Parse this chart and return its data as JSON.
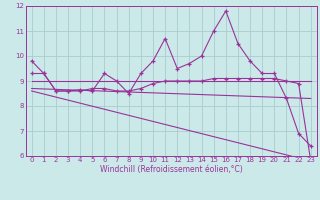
{
  "background_color": "#cce9e9",
  "grid_color": "#aacccc",
  "line_color": "#993399",
  "xlabel": "Windchill (Refroidissement éolien,°C)",
  "xlim": [
    -0.5,
    23.5
  ],
  "ylim": [
    6,
    12
  ],
  "yticks": [
    6,
    7,
    8,
    9,
    10,
    11,
    12
  ],
  "xticks": [
    0,
    1,
    2,
    3,
    4,
    5,
    6,
    7,
    8,
    9,
    10,
    11,
    12,
    13,
    14,
    15,
    16,
    17,
    18,
    19,
    20,
    21,
    22,
    23
  ],
  "series1": {
    "x": [
      0,
      1,
      2,
      3,
      4,
      5,
      6,
      7,
      8,
      9,
      10,
      11,
      12,
      13,
      14,
      15,
      16,
      17,
      18,
      19,
      20,
      21,
      22,
      23
    ],
    "y": [
      9.8,
      9.3,
      8.6,
      8.6,
      8.65,
      8.6,
      9.3,
      9.0,
      8.5,
      9.3,
      9.8,
      10.7,
      9.5,
      9.7,
      10.0,
      11.0,
      11.8,
      10.5,
      9.8,
      9.3,
      9.3,
      8.3,
      6.9,
      6.4
    ]
  },
  "series2": {
    "x": [
      0,
      1,
      2,
      3,
      4,
      5,
      6,
      7,
      8,
      9,
      10,
      11,
      12,
      13,
      14,
      15,
      16,
      17,
      18,
      19,
      20,
      21,
      22,
      23
    ],
    "y": [
      9.3,
      9.3,
      8.6,
      8.6,
      8.6,
      8.7,
      8.7,
      8.6,
      8.6,
      8.7,
      8.9,
      9.0,
      9.0,
      9.0,
      9.0,
      9.1,
      9.1,
      9.1,
      9.1,
      9.1,
      9.1,
      9.0,
      8.9,
      5.8
    ]
  },
  "line1": {
    "x": [
      0,
      23
    ],
    "y": [
      9.0,
      9.0
    ]
  },
  "line2": {
    "x": [
      0,
      23
    ],
    "y": [
      8.7,
      8.3
    ]
  },
  "line3": {
    "x": [
      0,
      23
    ],
    "y": [
      8.6,
      5.8
    ]
  },
  "tick_fontsize": 5,
  "label_fontsize": 5.5
}
